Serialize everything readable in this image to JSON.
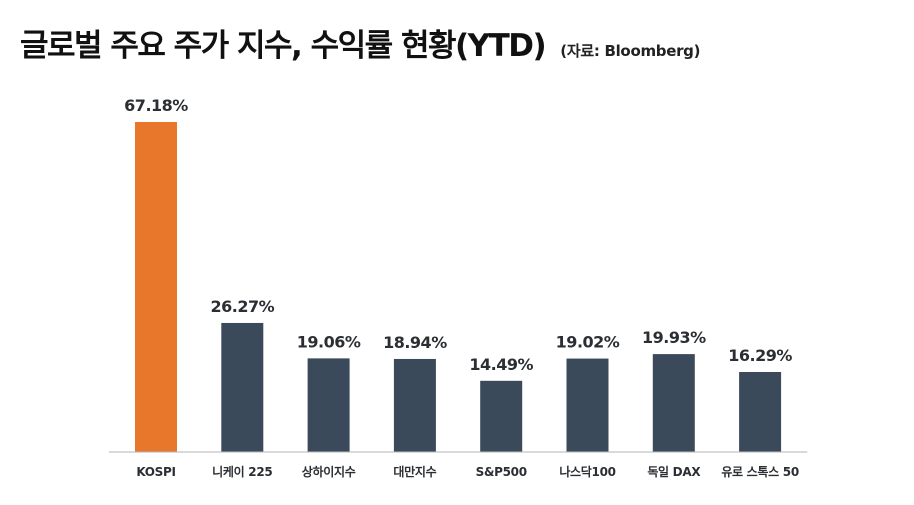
{
  "title": "글로벌 주요 주가 지수, 수익률 현황(YTD)",
  "source": "(자료: Bloomberg)",
  "colors": {
    "highlight": "#e8762b",
    "default": "#3b4a5a",
    "axis": "#b5b5b5",
    "text": "#2b2f33"
  },
  "chart_data": {
    "type": "bar",
    "title": "글로벌 주요 주가 지수, 수익률 현황(YTD)",
    "xlabel": "",
    "ylabel": "",
    "unit": "%",
    "ylim": [
      0,
      67.18
    ],
    "grid": false,
    "legend": "none",
    "categories": [
      "KOSPI",
      "니케이 225",
      "상하이지수",
      "대만지수",
      "S&P500",
      "나스닥100",
      "독일 DAX",
      "유로 스톡스 50"
    ],
    "values": [
      67.18,
      26.27,
      19.06,
      18.94,
      14.49,
      19.02,
      19.93,
      16.29
    ],
    "value_labels": [
      "67.18%",
      "26.27%",
      "19.06%",
      "18.94%",
      "14.49%",
      "19.02%",
      "19.93%",
      "16.29%"
    ],
    "highlight_index": 0
  }
}
